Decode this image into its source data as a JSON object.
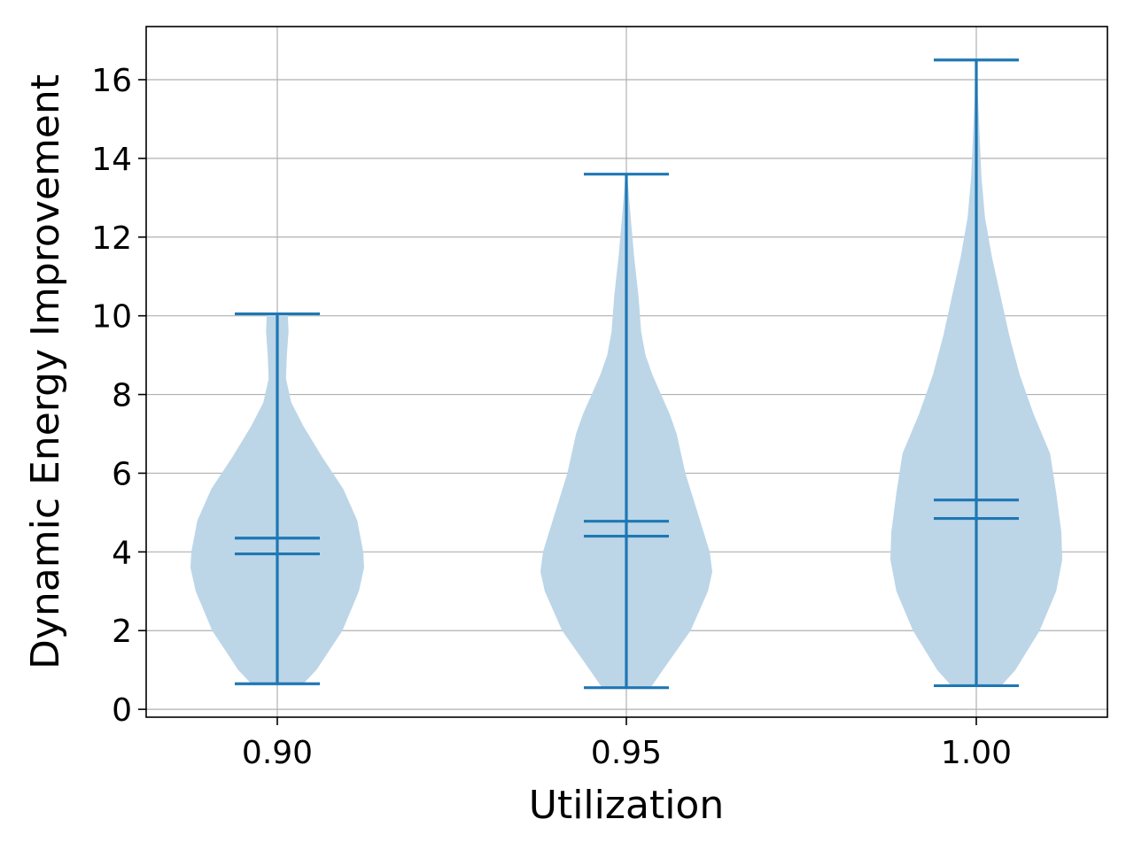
{
  "chart_data": {
    "type": "violin",
    "title": "",
    "xlabel": "Utilization",
    "ylabel": "Dynamic Energy Improvement",
    "x_tick_labels": [
      "0.90",
      "0.95",
      "1.00"
    ],
    "y_tick_labels": [
      "0",
      "2",
      "4",
      "6",
      "8",
      "10",
      "12",
      "14",
      "16"
    ],
    "ylim": [
      -0.2,
      17.35
    ],
    "grid": true,
    "colors": {
      "violin_fill": "#bcd6e8",
      "violin_line": "#1f77b4",
      "grid": "#b0b0b0"
    },
    "violins": [
      {
        "category": "0.90",
        "min": 0.65,
        "max": 10.05,
        "median": 3.95,
        "mean": 4.35,
        "density": [
          [
            0.65,
            0.3
          ],
          [
            1.0,
            0.45
          ],
          [
            2.0,
            0.75
          ],
          [
            3.0,
            0.94
          ],
          [
            3.6,
            1.0
          ],
          [
            4.0,
            0.99
          ],
          [
            4.8,
            0.92
          ],
          [
            5.6,
            0.76
          ],
          [
            6.4,
            0.52
          ],
          [
            7.2,
            0.3
          ],
          [
            7.8,
            0.16
          ],
          [
            8.4,
            0.1
          ],
          [
            9.0,
            0.11
          ],
          [
            9.6,
            0.13
          ],
          [
            10.05,
            0.12
          ]
        ]
      },
      {
        "category": "0.95",
        "min": 0.55,
        "max": 13.6,
        "median": 4.4,
        "mean": 4.78,
        "density": [
          [
            0.55,
            0.28
          ],
          [
            1.0,
            0.42
          ],
          [
            2.0,
            0.74
          ],
          [
            3.0,
            0.94
          ],
          [
            3.5,
            0.99
          ],
          [
            4.0,
            0.96
          ],
          [
            5.0,
            0.82
          ],
          [
            6.0,
            0.68
          ],
          [
            7.0,
            0.58
          ],
          [
            7.5,
            0.5
          ],
          [
            8.0,
            0.4
          ],
          [
            8.5,
            0.3
          ],
          [
            9.0,
            0.22
          ],
          [
            9.6,
            0.17
          ],
          [
            10.5,
            0.14
          ],
          [
            11.5,
            0.09
          ],
          [
            12.5,
            0.05
          ],
          [
            13.6,
            0.01
          ]
        ]
      },
      {
        "category": "1.00",
        "min": 0.6,
        "max": 16.5,
        "median": 4.85,
        "mean": 5.32,
        "density": [
          [
            0.6,
            0.29
          ],
          [
            1.0,
            0.45
          ],
          [
            2.0,
            0.73
          ],
          [
            3.0,
            0.92
          ],
          [
            3.8,
            0.99
          ],
          [
            4.5,
            0.98
          ],
          [
            5.5,
            0.92
          ],
          [
            6.5,
            0.85
          ],
          [
            7.5,
            0.66
          ],
          [
            8.5,
            0.5
          ],
          [
            9.5,
            0.38
          ],
          [
            10.5,
            0.28
          ],
          [
            11.5,
            0.18
          ],
          [
            12.5,
            0.1
          ],
          [
            13.5,
            0.06
          ],
          [
            14.5,
            0.04
          ],
          [
            15.5,
            0.02
          ],
          [
            16.5,
            0.01
          ]
        ]
      }
    ]
  }
}
